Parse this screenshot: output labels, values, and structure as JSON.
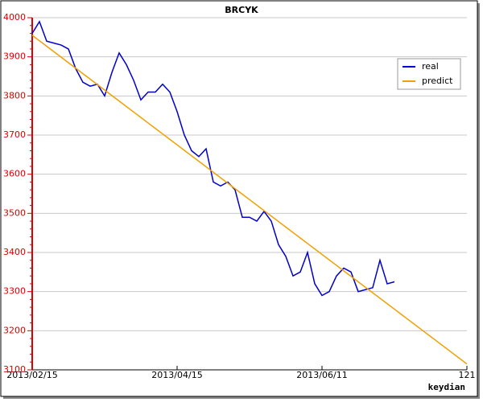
{
  "chart_data": {
    "type": "line",
    "title": "BRCYK",
    "x_label": "keydian",
    "x": [
      0,
      2,
      4,
      6,
      8,
      10,
      12,
      14,
      16,
      18,
      20,
      22,
      24,
      26,
      28,
      30,
      32,
      34,
      36,
      38,
      40,
      42,
      44,
      46,
      48,
      50,
      52,
      54,
      56,
      58,
      60,
      62,
      64,
      66,
      68,
      70,
      72,
      74,
      76,
      78,
      80,
      82,
      84,
      86,
      88,
      90,
      92,
      94,
      96,
      98,
      100,
      102,
      104,
      106,
      108,
      110,
      112,
      114,
      116,
      118,
      120
    ],
    "series": [
      {
        "name": "real",
        "color": "#0000cc",
        "values": [
          3960,
          3990,
          3940,
          3935,
          3930,
          3920,
          3870,
          3835,
          3825,
          3830,
          3800,
          3860,
          3910,
          3880,
          3840,
          3790,
          3810,
          3810,
          3830,
          3810,
          3760,
          3700,
          3660,
          3645,
          3665,
          3580,
          3570,
          3580,
          3560,
          3490,
          3490,
          3480,
          3505,
          3480,
          3420,
          3390,
          3340,
          3350,
          3400,
          3320,
          3290,
          3300,
          3340,
          3360,
          3350,
          3300,
          3305,
          3310,
          3380,
          3320,
          3325,
          null,
          null,
          null,
          null,
          null,
          null,
          null,
          null,
          null,
          null
        ]
      },
      {
        "name": "predict",
        "color": "#f0a000",
        "values": [
          3955,
          3941,
          3927,
          3913,
          3899,
          3885,
          3871,
          3857,
          3843,
          3829,
          3815,
          3801,
          3787,
          3773,
          3759,
          3745,
          3731,
          3717,
          3703,
          3689,
          3675,
          3661,
          3647,
          3633,
          3619,
          3605,
          3591,
          3577,
          3563,
          3549,
          3535,
          3521,
          3507,
          3493,
          3479,
          3465,
          3451,
          3437,
          3423,
          3409,
          3395,
          3381,
          3367,
          3353,
          3339,
          3325,
          3311,
          3297,
          3283,
          3269,
          3255,
          3241,
          3227,
          3213,
          3199,
          3185,
          3171,
          3157,
          3143,
          3129,
          3115
        ]
      }
    ],
    "xlim": [
      0,
      120
    ],
    "xticks": [
      {
        "value": 0,
        "label": "2013/02/15"
      },
      {
        "value": 40,
        "label": "2013/04/15"
      },
      {
        "value": 80,
        "label": "2013/06/11"
      },
      {
        "value": 120,
        "label": "121"
      }
    ],
    "ylim": [
      3100,
      4000
    ],
    "yticks": [
      3100,
      3200,
      3300,
      3400,
      3500,
      3600,
      3700,
      3800,
      3900,
      4000
    ],
    "grid": true,
    "legend": "upper right"
  }
}
